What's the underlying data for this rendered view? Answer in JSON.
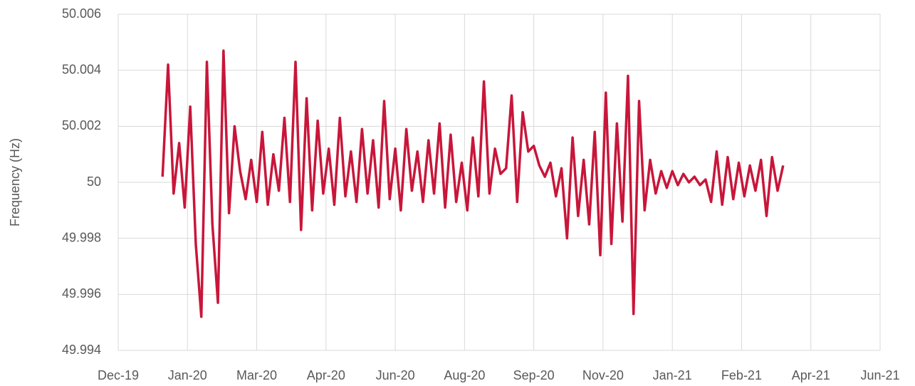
{
  "chart_data": {
    "type": "line",
    "y_label": "Frequency (Hz)",
    "x": [
      43832,
      43836,
      43840,
      43844,
      43848,
      43852,
      43856,
      43860,
      43864,
      43868,
      43872,
      43876,
      43880,
      43884,
      43888,
      43892,
      43896,
      43900,
      43904,
      43908,
      43912,
      43916,
      43920,
      43924,
      43928,
      43932,
      43936,
      43940,
      43944,
      43948,
      43952,
      43956,
      43960,
      43964,
      43968,
      43972,
      43976,
      43980,
      43984,
      43988,
      43992,
      43996,
      44000,
      44004,
      44008,
      44012,
      44016,
      44020,
      44024,
      44028,
      44032,
      44036,
      44040,
      44044,
      44048,
      44052,
      44056,
      44060,
      44064,
      44068,
      44072,
      44076,
      44080,
      44084,
      44088,
      44092,
      44096,
      44100,
      44104,
      44108,
      44112,
      44116,
      44120,
      44124,
      44128,
      44132,
      44136,
      44140,
      44144,
      44148,
      44152,
      44156,
      44160,
      44164,
      44168,
      44172,
      44176,
      44180,
      44184,
      44188,
      44192,
      44196,
      44200,
      44204,
      44208,
      44212,
      44216,
      44220,
      44224,
      44228,
      44232,
      44236,
      44240,
      44244,
      44248,
      44252,
      44256,
      44260,
      44264,
      44268,
      44272,
      44276,
      44280
    ],
    "series": [
      {
        "name": "Frequency",
        "color": "#c8163a",
        "values": [
          50.0002,
          50.0042,
          49.9996,
          50.0014,
          49.9991,
          50.0027,
          49.9978,
          49.9952,
          50.0043,
          49.9985,
          49.9957,
          50.0047,
          49.9989,
          50.002,
          50.0004,
          49.9994,
          50.0008,
          49.9993,
          50.0018,
          49.9992,
          50.001,
          49.9997,
          50.0023,
          49.9993,
          50.0043,
          49.9983,
          50.003,
          49.999,
          50.0022,
          49.9996,
          50.0012,
          49.9992,
          50.0023,
          49.9995,
          50.0011,
          49.9993,
          50.0019,
          49.9996,
          50.0015,
          49.9991,
          50.0029,
          49.9994,
          50.0012,
          49.999,
          50.0019,
          49.9997,
          50.0011,
          49.9993,
          50.0015,
          49.9996,
          50.0021,
          49.9991,
          50.0017,
          49.9993,
          50.0007,
          49.999,
          50.0016,
          49.9995,
          50.0036,
          49.9996,
          50.0012,
          50.0003,
          50.0005,
          50.0031,
          49.9993,
          50.0025,
          50.0011,
          50.0013,
          50.0006,
          50.0002,
          50.0007,
          49.9995,
          50.0005,
          49.998,
          50.0016,
          49.9988,
          50.0008,
          49.9985,
          50.0018,
          49.9974,
          50.0032,
          49.9978,
          50.0021,
          49.9986,
          50.0038,
          49.9953,
          50.0029,
          49.999,
          50.0008,
          49.9996,
          50.0004,
          49.9998,
          50.0004,
          49.9999,
          50.0003,
          50.0,
          50.0002,
          49.9999,
          50.0001,
          49.9993,
          50.0011,
          49.9992,
          50.0009,
          49.9994,
          50.0007,
          49.9995,
          50.0006,
          49.9997,
          50.0008,
          49.9988,
          50.0009,
          49.9997,
          50.0006
        ]
      }
    ],
    "xlim": [
      43800,
      44350
    ],
    "xticks": [
      {
        "value": 43800,
        "label": "Dec-19"
      },
      {
        "value": 43850,
        "label": "Jan-20"
      },
      {
        "value": 43900,
        "label": "Mar-20"
      },
      {
        "value": 43950,
        "label": "Apr-20"
      },
      {
        "value": 44000,
        "label": "Jun-20"
      },
      {
        "value": 44050,
        "label": "Aug-20"
      },
      {
        "value": 44100,
        "label": "Sep-20"
      },
      {
        "value": 44150,
        "label": "Nov-20"
      },
      {
        "value": 44200,
        "label": "Jan-21"
      },
      {
        "value": 44250,
        "label": "Feb-21"
      },
      {
        "value": 44300,
        "label": "Apr-21"
      },
      {
        "value": 44350,
        "label": "Jun-21"
      }
    ],
    "ylim": [
      49.994,
      50.006
    ],
    "yticks": [
      49.994,
      49.996,
      49.998,
      50,
      50.002,
      50.004,
      50.006
    ],
    "grid": true
  }
}
